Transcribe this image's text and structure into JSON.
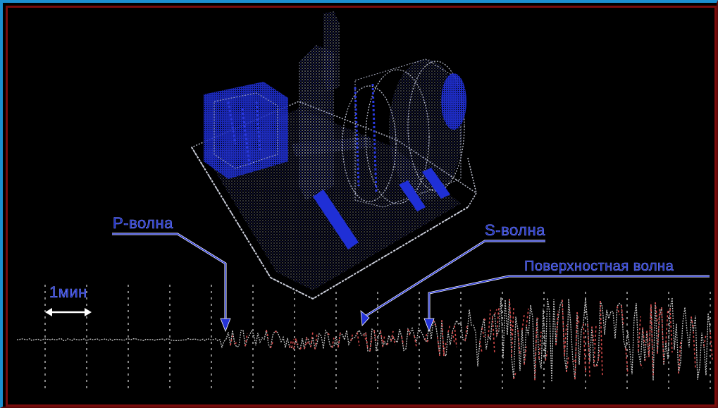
{
  "labels": {
    "p_wave": "P-волна",
    "s_wave": "S-волна",
    "surface_wave": "Поверхностная волна",
    "time_scale": "1мин"
  },
  "colors": {
    "background": "#000000",
    "outer_border": "#1c8fd0",
    "inner_border": "#7a0c0c",
    "label_fill": "#1a2cc0",
    "machine": "#1f2fd6",
    "trace": "#d05050",
    "grid": "#c9c9c9",
    "pointer": "#2433d8",
    "scale_arrow": "#ffffff"
  },
  "illustration": "seismograph-machine"
}
